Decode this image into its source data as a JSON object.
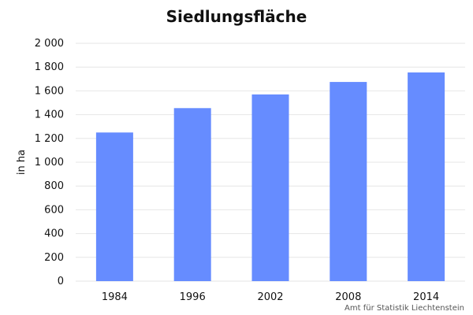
{
  "chart_data": {
    "type": "bar",
    "title": "Siedlungsfläche",
    "xlabel": "",
    "ylabel": "in ha",
    "categories": [
      "1984",
      "1996",
      "2002",
      "2008",
      "2014"
    ],
    "values": [
      1250,
      1455,
      1570,
      1675,
      1755
    ],
    "ylim": [
      0,
      2000
    ],
    "yticks": [
      0,
      200,
      400,
      600,
      800,
      1000,
      1200,
      1400,
      1600,
      1800,
      2000
    ],
    "ytick_labels": [
      "0",
      "200",
      "400",
      "600",
      "800",
      "1 000",
      "1 200",
      "1 400",
      "1 600",
      "1 800",
      "2 000"
    ],
    "grid": true,
    "bar_color": "#668cff",
    "grid_color": "#e6e6e6",
    "source": "Amt für Statistik Liechtenstein"
  }
}
